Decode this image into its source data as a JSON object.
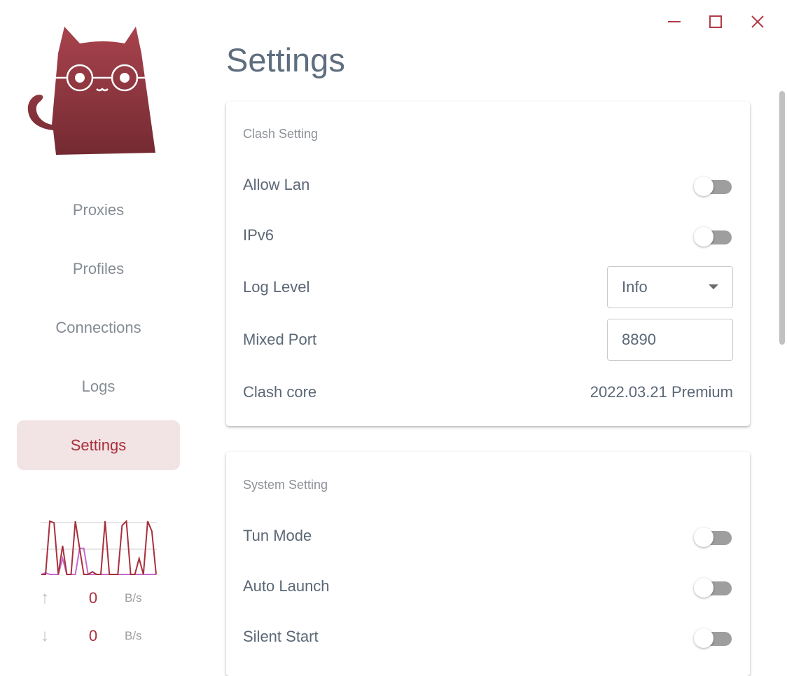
{
  "window": {
    "minimize_icon": "minus-icon",
    "maximize_icon": "square-icon",
    "close_icon": "x-icon",
    "accent": "#b23a48"
  },
  "sidebar": {
    "items": [
      {
        "label": "Proxies"
      },
      {
        "label": "Profiles"
      },
      {
        "label": "Connections"
      },
      {
        "label": "Logs"
      },
      {
        "label": "Settings",
        "active": true
      }
    ],
    "traffic": {
      "upload": {
        "value": "0",
        "unit": "B/s",
        "icon": "arrow-up-icon"
      },
      "download": {
        "value": "0",
        "unit": "B/s",
        "icon": "arrow-down-icon"
      },
      "graph": {
        "line_a": [
          0,
          0,
          100,
          97,
          0,
          54,
          0,
          0,
          100,
          49,
          0,
          0,
          5,
          0,
          0,
          100,
          0,
          0,
          0,
          92,
          100,
          0,
          0,
          30,
          0,
          100,
          81,
          0
        ],
        "line_b": [
          0,
          3,
          0,
          0,
          0,
          30,
          0,
          0,
          0,
          49,
          49,
          0,
          0,
          0,
          0,
          0,
          0,
          0,
          0,
          0,
          0,
          0,
          0,
          0,
          0,
          0,
          0,
          0
        ],
        "color_a": "#a8303c",
        "color_b": "#c66ad0"
      }
    }
  },
  "page": {
    "title": "Settings"
  },
  "clash_setting": {
    "title": "Clash Setting",
    "allow_lan": {
      "label": "Allow Lan",
      "on": false
    },
    "ipv6": {
      "label": "IPv6",
      "on": false
    },
    "log_level": {
      "label": "Log Level",
      "value": "Info"
    },
    "mixed_port": {
      "label": "Mixed Port",
      "value": "8890"
    },
    "clash_core": {
      "label": "Clash core",
      "value": "2022.03.21 Premium"
    }
  },
  "system_setting": {
    "title": "System Setting",
    "tun_mode": {
      "label": "Tun Mode",
      "on": false
    },
    "auto_launch": {
      "label": "Auto Launch",
      "on": false
    },
    "silent_start": {
      "label": "Silent Start",
      "on": false
    }
  }
}
